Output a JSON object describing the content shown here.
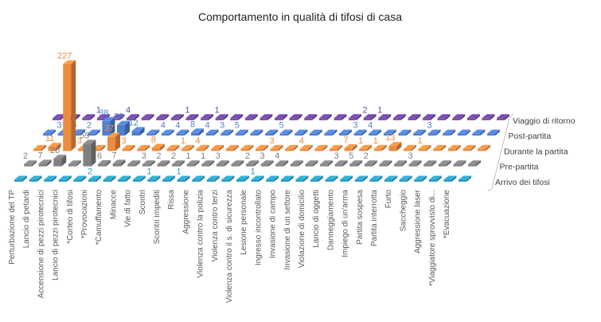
{
  "chart_data": {
    "type": "bar",
    "subtype": "3d-column",
    "title": "Comportamento in qualità di tifosi di casa",
    "grid": false,
    "legend": "depth-axis-right",
    "categories": [
      "Perturbazione del TP",
      "Lancio di petardi",
      "Accensione di pezzi pirotecnici",
      "Lancio di pezzi pirotecnici",
      "*Corteo di tifosi",
      "*Provocazioni",
      "*Camuffamento",
      "Minacce",
      "Vie di fatto",
      "Scontri",
      "Scontri impediti",
      "Rissa",
      "Aggressione",
      "Violenza contro la polizia",
      "Violenza contro terzi",
      "Violenza contro il s. di sicurezza",
      "Lesione personale",
      "Ingresso incontrollato",
      "Invasione di campo",
      "Invasione di un settore",
      "Violazione di domicilio",
      "Lancio di oggetti",
      "Danneggiamento",
      "Impiego di un'arma",
      "Partita sospesa",
      "Partita interrotta",
      "Furto",
      "Saccheggio",
      "Aggressione laser",
      "*Viaggiatore sprovvisto di...",
      "*Evacuazione"
    ],
    "series": [
      {
        "name": "Arrivo dei tifosi",
        "color": "#2E9FC2",
        "values": [
          0,
          0,
          0,
          0,
          0,
          2,
          0,
          0,
          0,
          1,
          0,
          1,
          0,
          0,
          0,
          0,
          1,
          0,
          0,
          0,
          0,
          0,
          0,
          0,
          0,
          0,
          0,
          0,
          0,
          0,
          0
        ]
      },
      {
        "name": "Pre-partita",
        "color": "#808080",
        "values": [
          2,
          7,
          20,
          0,
          59,
          6,
          7,
          0,
          3,
          2,
          2,
          1,
          1,
          3,
          0,
          2,
          3,
          4,
          0,
          0,
          0,
          3,
          5,
          2,
          0,
          0,
          3,
          0,
          0,
          0,
          0
        ]
      },
      {
        "name": "Durante la partita",
        "color": "#ED8B3F",
        "values": [
          0,
          11,
          227,
          3,
          0,
          37,
          3,
          0,
          8,
          0,
          1,
          4,
          0,
          0,
          0,
          0,
          3,
          0,
          4,
          0,
          0,
          7,
          1,
          1,
          13,
          0,
          1,
          0,
          0,
          0,
          0
        ]
      },
      {
        "name": "Post-partita",
        "color": "#4F7FCF",
        "values": [
          0,
          3,
          6,
          2,
          38,
          28,
          12,
          0,
          4,
          4,
          8,
          4,
          3,
          5,
          0,
          0,
          5,
          0,
          0,
          0,
          0,
          3,
          4,
          0,
          0,
          0,
          3,
          0,
          0,
          0,
          0
        ]
      },
      {
        "name": "Viaggio di ritorno",
        "color": "#7045A0",
        "values": [
          0,
          0,
          0,
          1,
          0,
          4,
          0,
          0,
          0,
          1,
          0,
          1,
          0,
          0,
          0,
          0,
          0,
          0,
          0,
          0,
          0,
          2,
          1,
          0,
          0,
          0,
          0,
          0,
          0,
          0,
          0
        ]
      }
    ]
  }
}
